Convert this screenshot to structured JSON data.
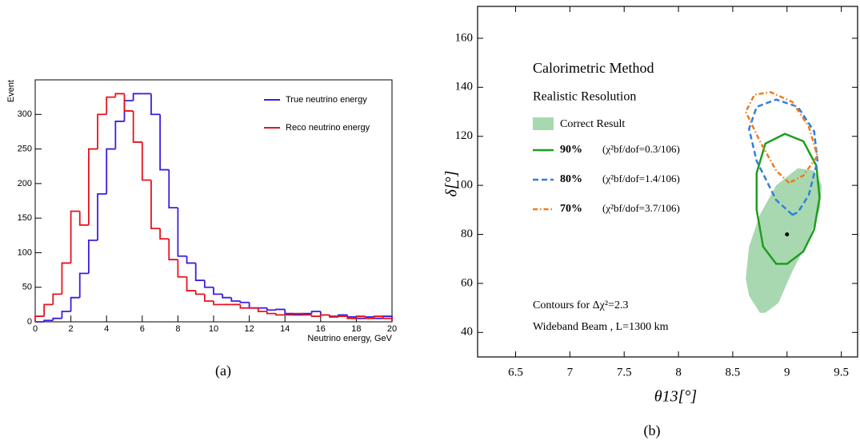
{
  "chart_data": [
    {
      "type": "histogram",
      "caption": "(a)",
      "y_label": "Event",
      "x_label": "Neutrino energy, GeV",
      "bins": [
        0,
        0.5,
        1,
        1.5,
        2,
        2.5,
        3,
        3.5,
        4,
        4.5,
        5,
        5.5,
        6,
        6.5,
        7,
        7.5,
        8,
        8.5,
        9,
        9.5,
        10,
        10.5,
        11,
        11.5,
        12,
        12.5,
        13,
        13.5,
        14,
        14.5,
        15,
        15.5,
        16,
        16.5,
        17,
        17.5,
        18,
        18.5,
        19,
        19.5,
        20
      ],
      "series": [
        {
          "name": "True neutrino energy",
          "color": "#3a1fe0",
          "values": [
            0,
            2,
            5,
            15,
            35,
            70,
            118,
            185,
            250,
            290,
            320,
            330,
            330,
            300,
            220,
            165,
            95,
            85,
            60,
            50,
            40,
            35,
            30,
            28,
            20,
            20,
            17,
            18,
            12,
            10,
            12,
            15,
            10,
            8,
            10,
            7,
            5,
            7,
            5,
            8
          ]
        },
        {
          "name": "Reco neutrino energy",
          "color": "#e8121e",
          "values": [
            8,
            25,
            40,
            85,
            160,
            140,
            250,
            300,
            325,
            330,
            305,
            260,
            205,
            135,
            120,
            90,
            65,
            45,
            40,
            30,
            25,
            25,
            25,
            20,
            20,
            15,
            12,
            10,
            10,
            12,
            10,
            8,
            10,
            7,
            8,
            5,
            8,
            5,
            8,
            5
          ]
        }
      ],
      "xlim": [
        0,
        20
      ],
      "xticks": [
        0,
        2,
        4,
        6,
        8,
        10,
        12,
        14,
        16,
        18,
        20
      ],
      "ylim": [
        0,
        350
      ],
      "yticks": [
        0,
        50,
        100,
        150,
        200,
        250,
        300
      ],
      "legend": "top-right"
    },
    {
      "type": "contour",
      "caption": "(b)",
      "x_label": "θ13[°]",
      "y_label": "δ[°]",
      "title": "Calorimetric Method",
      "subtitle": "Realistic Resolution",
      "region": {
        "name": "Correct Result",
        "color": "#a8d8b0",
        "x": [
          8.75,
          8.65,
          8.62,
          8.65,
          8.75,
          8.9,
          9.1,
          9.25,
          9.32,
          9.3,
          9.2,
          9.05,
          8.92,
          8.8
        ],
        "y": [
          48,
          55,
          62,
          75,
          88,
          100,
          107,
          106,
          100,
          90,
          78,
          65,
          52,
          48
        ]
      },
      "series": [
        {
          "name": "90%",
          "note": "(χ²bf/dof=0.3/106)",
          "color": "#1e9e1e",
          "dash": "solid",
          "x": [
            8.9,
            8.78,
            8.72,
            8.72,
            8.8,
            8.98,
            9.15,
            9.27,
            9.3,
            9.25,
            9.15,
            9.0
          ],
          "y": [
            68,
            75,
            90,
            105,
            117,
            121,
            118,
            108,
            95,
            82,
            73,
            68
          ]
        },
        {
          "name": "80%",
          "note": "(χ²bf/dof=1.4/106)",
          "color": "#2f7fe0",
          "dash": "dashed",
          "x": [
            9.05,
            8.9,
            8.72,
            8.65,
            8.72,
            8.9,
            9.1,
            9.25,
            9.28,
            9.2,
            9.1
          ],
          "y": [
            88,
            94,
            110,
            123,
            132,
            135,
            132,
            122,
            110,
            96,
            89
          ]
        },
        {
          "name": "70%",
          "note": "(χ²bf/dof=3.7/106)",
          "color": "#f07a1a",
          "dash": "dashdot",
          "x": [
            9.02,
            8.9,
            8.75,
            8.62,
            8.7,
            8.85,
            9.05,
            9.2,
            9.28,
            9.15
          ],
          "y": [
            101,
            106,
            118,
            130,
            137,
            138,
            134,
            124,
            112,
            104
          ]
        }
      ],
      "best_fit": {
        "x": 9.0,
        "y": 80
      },
      "annotations": [
        "Contours for Δχ²=2.3",
        "Wideband Beam , L=1300 km"
      ],
      "xlim": [
        6.15,
        9.65
      ],
      "xticks": [
        6.5,
        7.0,
        7.5,
        8.0,
        8.5,
        9.0,
        9.5
      ],
      "ylim": [
        30,
        173
      ],
      "yticks": [
        40,
        60,
        80,
        100,
        120,
        140,
        160
      ]
    }
  ]
}
